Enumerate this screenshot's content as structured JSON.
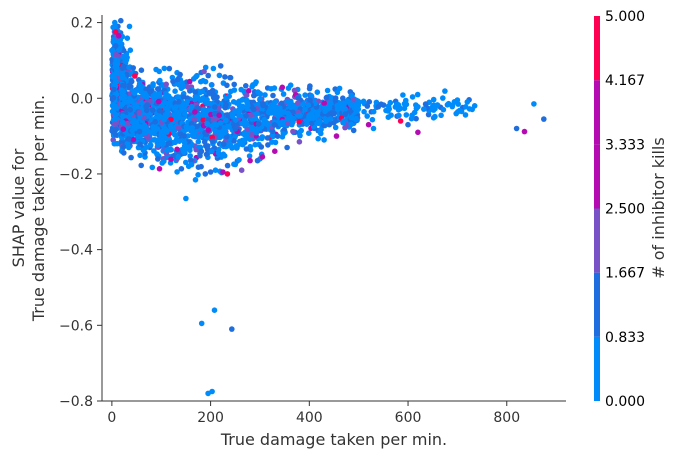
{
  "chart_data": {
    "type": "scatter",
    "title": "",
    "xlabel": "True damage taken per min.",
    "ylabel_lines": [
      "SHAP value for",
      "True damage taken per min."
    ],
    "xlim": [
      -20,
      920
    ],
    "ylim": [
      -0.8,
      0.22
    ],
    "xticks": [
      0,
      200,
      400,
      600,
      800
    ],
    "xtick_labels": [
      "0",
      "200",
      "400",
      "600",
      "800"
    ],
    "yticks": [
      0.2,
      0.0,
      -0.2,
      -0.4,
      -0.6,
      -0.8
    ],
    "ytick_labels": [
      "0.2",
      "0.0",
      "−0.2",
      "−0.4",
      "−0.6",
      "−0.8"
    ],
    "grid": false,
    "colorbar": {
      "label": "# of inhibitor kills",
      "range": [
        0,
        5
      ],
      "ticks": [
        0,
        0.833,
        1.667,
        2.5,
        3.333,
        4.167,
        5.0
      ],
      "tick_labels": [
        "0.000",
        "0.833",
        "1.667",
        "2.500",
        "3.333",
        "4.167",
        "5.000"
      ],
      "colors": [
        "#008bfb",
        "#1e6ee0",
        "#7a52c8",
        "#b40cb2",
        "#ff0052"
      ]
    },
    "color_legend": {
      "low": "#008bfb",
      "mid": "#7a52c8",
      "high": "#ff0052"
    },
    "notable_points": [
      {
        "x": 150,
        "y": -0.265,
        "c": 0
      },
      {
        "x": 182,
        "y": -0.595,
        "c": 0
      },
      {
        "x": 208,
        "y": -0.56,
        "c": 0
      },
      {
        "x": 243,
        "y": -0.61,
        "c": 1
      },
      {
        "x": 195,
        "y": -0.78,
        "c": 0
      },
      {
        "x": 203,
        "y": -0.775,
        "c": 0
      },
      {
        "x": 820,
        "y": -0.08,
        "c": 1
      },
      {
        "x": 836,
        "y": -0.088,
        "c": 3
      },
      {
        "x": 875,
        "y": -0.055,
        "c": 1
      },
      {
        "x": 855,
        "y": -0.015,
        "c": 0
      },
      {
        "x": 735,
        "y": -0.02,
        "c": 0
      },
      {
        "x": 720,
        "y": -0.01,
        "c": 0
      },
      {
        "x": 700,
        "y": -0.005,
        "c": 0
      },
      {
        "x": 690,
        "y": -0.018,
        "c": 0
      },
      {
        "x": 667,
        "y": -0.045,
        "c": 0
      },
      {
        "x": 650,
        "y": -0.03,
        "c": 0
      },
      {
        "x": 620,
        "y": -0.09,
        "c": 3
      },
      {
        "x": 600,
        "y": -0.07,
        "c": 1
      },
      {
        "x": 585,
        "y": -0.06,
        "c": 4
      },
      {
        "x": 560,
        "y": -0.05,
        "c": 0
      },
      {
        "x": 530,
        "y": -0.08,
        "c": 0
      },
      {
        "x": 520,
        "y": -0.07,
        "c": 3
      },
      {
        "x": 490,
        "y": -0.085,
        "c": 1
      },
      {
        "x": 470,
        "y": -0.06,
        "c": 0
      },
      {
        "x": 455,
        "y": -0.1,
        "c": 3
      },
      {
        "x": 430,
        "y": -0.11,
        "c": 0
      },
      {
        "x": 380,
        "y": -0.115,
        "c": 2
      },
      {
        "x": 355,
        "y": -0.13,
        "c": 1
      },
      {
        "x": 330,
        "y": -0.14,
        "c": 3
      },
      {
        "x": 305,
        "y": -0.155,
        "c": 3
      },
      {
        "x": 295,
        "y": -0.165,
        "c": 1
      },
      {
        "x": 280,
        "y": -0.165,
        "c": 3
      },
      {
        "x": 263,
        "y": -0.19,
        "c": 2
      },
      {
        "x": 250,
        "y": -0.175,
        "c": 0
      },
      {
        "x": 234,
        "y": -0.2,
        "c": 4
      },
      {
        "x": 225,
        "y": -0.195,
        "c": 3
      },
      {
        "x": 210,
        "y": -0.19,
        "c": 0
      },
      {
        "x": 200,
        "y": -0.195,
        "c": 1
      },
      {
        "x": 6,
        "y": 0.2,
        "c": 0
      },
      {
        "x": 18,
        "y": 0.205,
        "c": 1
      },
      {
        "x": 8,
        "y": 0.175,
        "c": 4
      },
      {
        "x": 14,
        "y": 0.165,
        "c": 3
      }
    ]
  }
}
